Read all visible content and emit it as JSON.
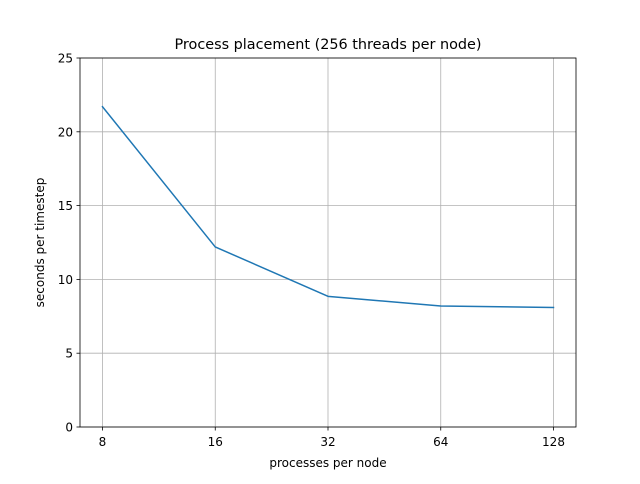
{
  "chart_data": {
    "type": "line",
    "title": "Process placement (256 threads per node)",
    "xlabel": "processes per node",
    "ylabel": "seconds per timestep",
    "x_scale": "log2",
    "x": [
      8,
      16,
      32,
      64,
      128
    ],
    "x_tick_labels": [
      "8",
      "16",
      "32",
      "64",
      "128"
    ],
    "y_ticks": [
      0,
      5,
      10,
      15,
      20,
      25
    ],
    "y_tick_labels": [
      "0",
      "5",
      "10",
      "15",
      "20",
      "25"
    ],
    "ylim": [
      0,
      25
    ],
    "grid": true,
    "series": [
      {
        "color": "#1f77b4",
        "values": [
          21.7,
          12.2,
          8.85,
          8.2,
          8.1
        ]
      }
    ]
  }
}
